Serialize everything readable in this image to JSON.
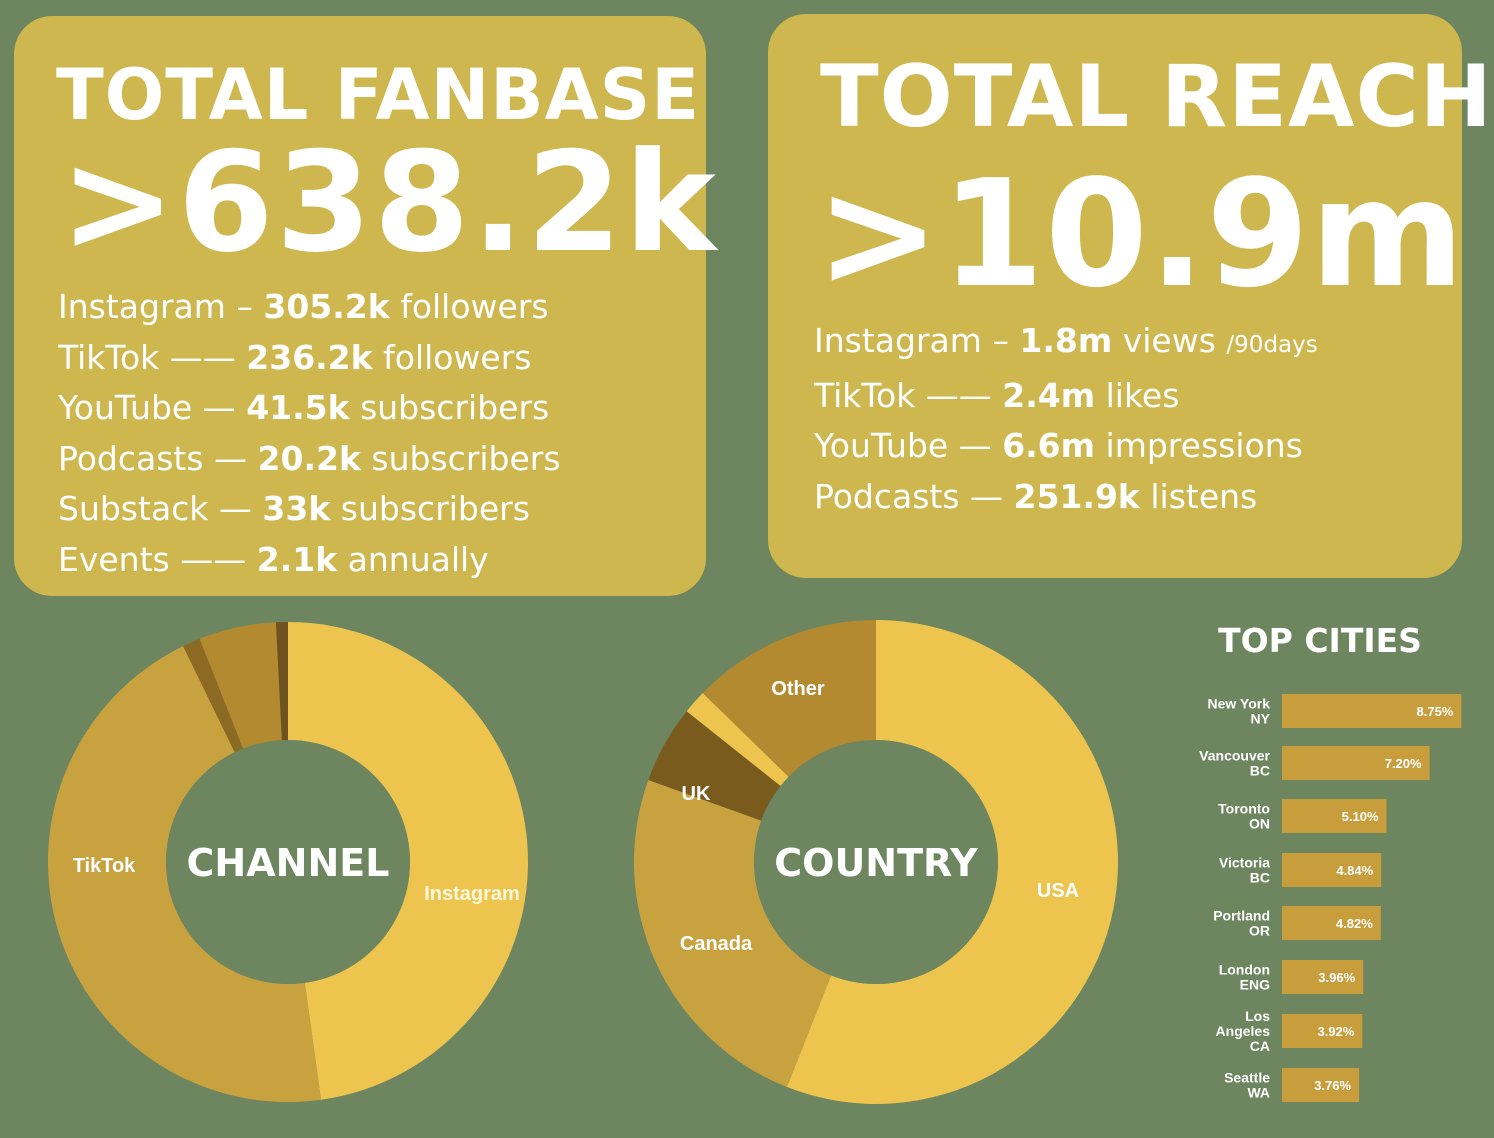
{
  "fanbase": {
    "title": "TOTAL FANBASE",
    "big": ">638.2k",
    "rows": [
      {
        "label": "Instagram –",
        "value": "305.2k",
        "unit": "followers",
        "suffix": ""
      },
      {
        "label": "TikTok ——",
        "value": "236.2k",
        "unit": "followers",
        "suffix": ""
      },
      {
        "label": "YouTube —",
        "value": "41.5k",
        "unit": "subscribers",
        "suffix": ""
      },
      {
        "label": "Podcasts —",
        "value": "20.2k",
        "unit": "subscribers",
        "suffix": ""
      },
      {
        "label": "Substack —",
        "value": "33k",
        "unit": "subscribers",
        "suffix": ""
      },
      {
        "label": "Events ——",
        "value": "2.1k",
        "unit": "annually",
        "suffix": ""
      }
    ]
  },
  "reach": {
    "title": "TOTAL REACH",
    "big": ">10.9m",
    "rows": [
      {
        "label": "Instagram –",
        "value": "1.8m",
        "unit": "views",
        "suffix": "/90days"
      },
      {
        "label": "TikTok ——",
        "value": "2.4m",
        "unit": "likes",
        "suffix": ""
      },
      {
        "label": "YouTube —",
        "value": "6.6m",
        "unit": "impressions",
        "suffix": ""
      },
      {
        "label": "Podcasts —",
        "value": "251.9k",
        "unit": "listens",
        "suffix": ""
      }
    ]
  },
  "colors": {
    "background": "#6d8660",
    "card": "#cfb74f",
    "text": "#ffffff",
    "bar": "#c89d3c"
  },
  "chart_data": [
    {
      "type": "pie",
      "center_label": "CHANNEL",
      "categories": [
        "Instagram",
        "TikTok",
        "",
        "",
        ""
      ],
      "values": [
        47.8,
        45.0,
        1.2,
        5.2,
        0.8
      ],
      "colors": [
        "#ecc44e",
        "#c8a23f",
        "#8d6a23",
        "#b48a30",
        "#6e5220"
      ],
      "labels_shown": [
        "Instagram",
        "TikTok"
      ]
    },
    {
      "type": "pie",
      "center_label": "COUNTRY",
      "categories": [
        "USA",
        "Canada",
        "UK",
        "",
        "",
        "Other"
      ],
      "values": [
        56.0,
        24.5,
        5.2,
        1.6,
        1.0,
        11.7
      ],
      "colors": [
        "#ecc44e",
        "#c8a23f",
        "#7a5b1e",
        "#ecc44e",
        "#b48a30",
        "#b48a30"
      ],
      "labels_shown": [
        "USA",
        "Canada",
        "UK",
        "Other"
      ]
    },
    {
      "type": "bar",
      "title": "TOP CITIES",
      "orientation": "horizontal",
      "categories": [
        "New York NY",
        "Vancouver BC",
        "Toronto ON",
        "Victoria BC",
        "Portland OR",
        "London ENG",
        "Los Angeles CA",
        "Seattle WA"
      ],
      "category_lines": [
        [
          "New York",
          "NY"
        ],
        [
          "Vancouver",
          "BC"
        ],
        [
          "Toronto",
          "ON"
        ],
        [
          "Victoria",
          "BC"
        ],
        [
          "Portland",
          "OR"
        ],
        [
          "London",
          "ENG"
        ],
        [
          "Los",
          "Angeles",
          "CA"
        ],
        [
          "Seattle",
          "WA"
        ]
      ],
      "values": [
        8.75,
        7.2,
        5.1,
        4.84,
        4.82,
        3.96,
        3.92,
        3.76
      ],
      "value_labels": [
        "8.75%",
        "7.20%",
        "5.10%",
        "4.84%",
        "4.82%",
        "3.96%",
        "3.92%",
        "3.76%"
      ]
    }
  ]
}
